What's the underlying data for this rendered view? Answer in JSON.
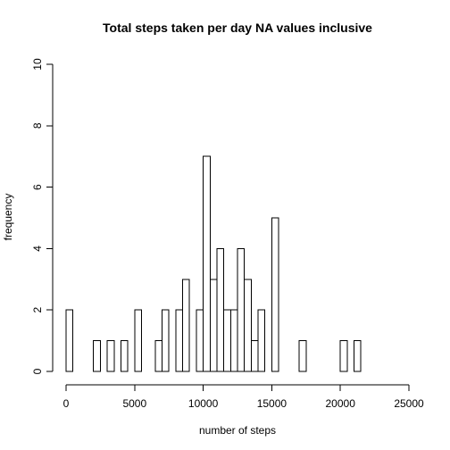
{
  "chart_data": {
    "type": "bar",
    "title": "Total steps taken per day NA values inclusive",
    "xlabel": "number of steps",
    "ylabel": "frequency",
    "xlim": [
      0,
      25000
    ],
    "ylim": [
      0,
      10
    ],
    "x_ticks": [
      0,
      5000,
      10000,
      15000,
      20000,
      25000
    ],
    "y_ticks": [
      0,
      2,
      4,
      6,
      8,
      10
    ],
    "bin_width": 500,
    "bin_starts": [
      0,
      500,
      1000,
      1500,
      2000,
      2500,
      3000,
      3500,
      4000,
      4500,
      5000,
      5500,
      6000,
      6500,
      7000,
      7500,
      8000,
      8500,
      9000,
      9500,
      10000,
      10500,
      11000,
      11500,
      12000,
      12500,
      13000,
      13500,
      14000,
      14500,
      15000,
      15500,
      16000,
      16500,
      17000,
      17500,
      18000,
      18500,
      19000,
      19500,
      20000,
      20500,
      21000
    ],
    "values": [
      2,
      0,
      0,
      0,
      1,
      0,
      1,
      0,
      1,
      0,
      2,
      0,
      0,
      1,
      2,
      0,
      2,
      3,
      0,
      2,
      7,
      3,
      4,
      2,
      2,
      4,
      3,
      1,
      2,
      0,
      5,
      0,
      0,
      0,
      1,
      0,
      0,
      0,
      0,
      0,
      1,
      0,
      1
    ],
    "bar_fill": "#ffffff",
    "bar_stroke": "#000000",
    "grid": false,
    "legend": "none"
  }
}
